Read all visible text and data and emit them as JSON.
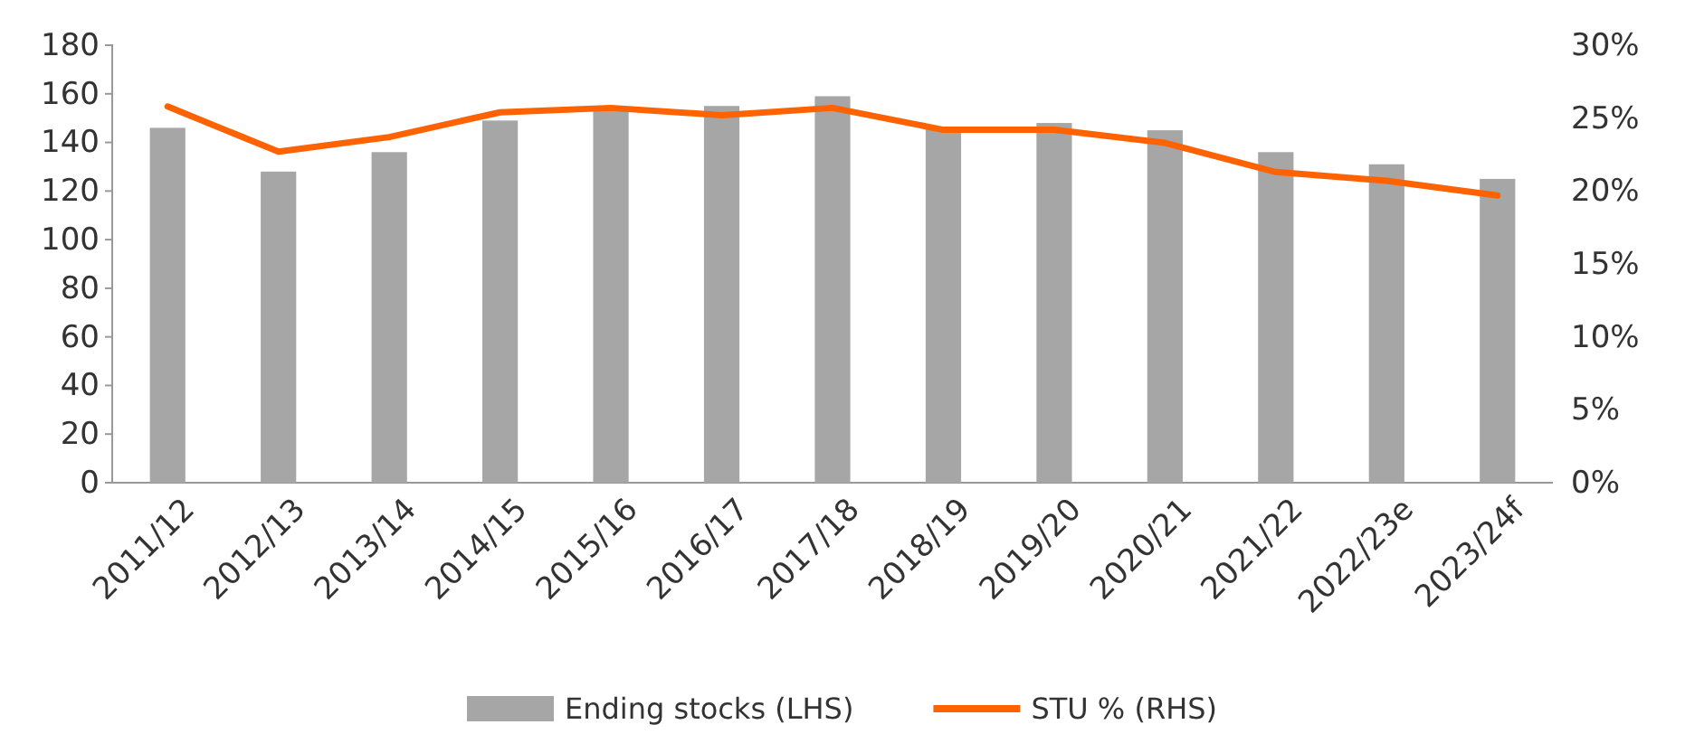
{
  "chart_data": {
    "type": "bar",
    "categories": [
      "2011/12",
      "2012/13",
      "2013/14",
      "2014/15",
      "2015/16",
      "2016/17",
      "2017/18",
      "2018/19",
      "2019/20",
      "2020/21",
      "2021/22",
      "2022/23e",
      "2023/24f"
    ],
    "series": [
      {
        "name": "Ending stocks (LHS)",
        "color": "#a6a6a6",
        "values": [
          146,
          128,
          136,
          149,
          154,
          155,
          159,
          146,
          148,
          145,
          136,
          131,
          125
        ]
      },
      {
        "name": "STU % (RHS)",
        "type": "line",
        "axis": "y2",
        "color": "#ff6200",
        "values": [
          25.8,
          22.7,
          23.7,
          25.4,
          25.7,
          25.2,
          25.7,
          24.2,
          24.2,
          23.3,
          21.3,
          20.7,
          19.7
        ]
      }
    ],
    "ylim": [
      0,
      180
    ],
    "yticks": [
      0,
      20,
      40,
      60,
      80,
      100,
      120,
      140,
      160,
      180
    ],
    "y2lim": [
      0,
      30
    ],
    "y2ticks": [
      {
        "value": 0,
        "label": "0%"
      },
      {
        "value": 5,
        "label": "5%"
      },
      {
        "value": 10,
        "label": "10%"
      },
      {
        "value": 15,
        "label": "15%"
      },
      {
        "value": 20,
        "label": "20%"
      },
      {
        "value": 25,
        "label": "25%"
      },
      {
        "value": 30,
        "label": "30%"
      }
    ],
    "legend": "bottom",
    "grid": false,
    "marker": "none",
    "line_style": "solid"
  }
}
